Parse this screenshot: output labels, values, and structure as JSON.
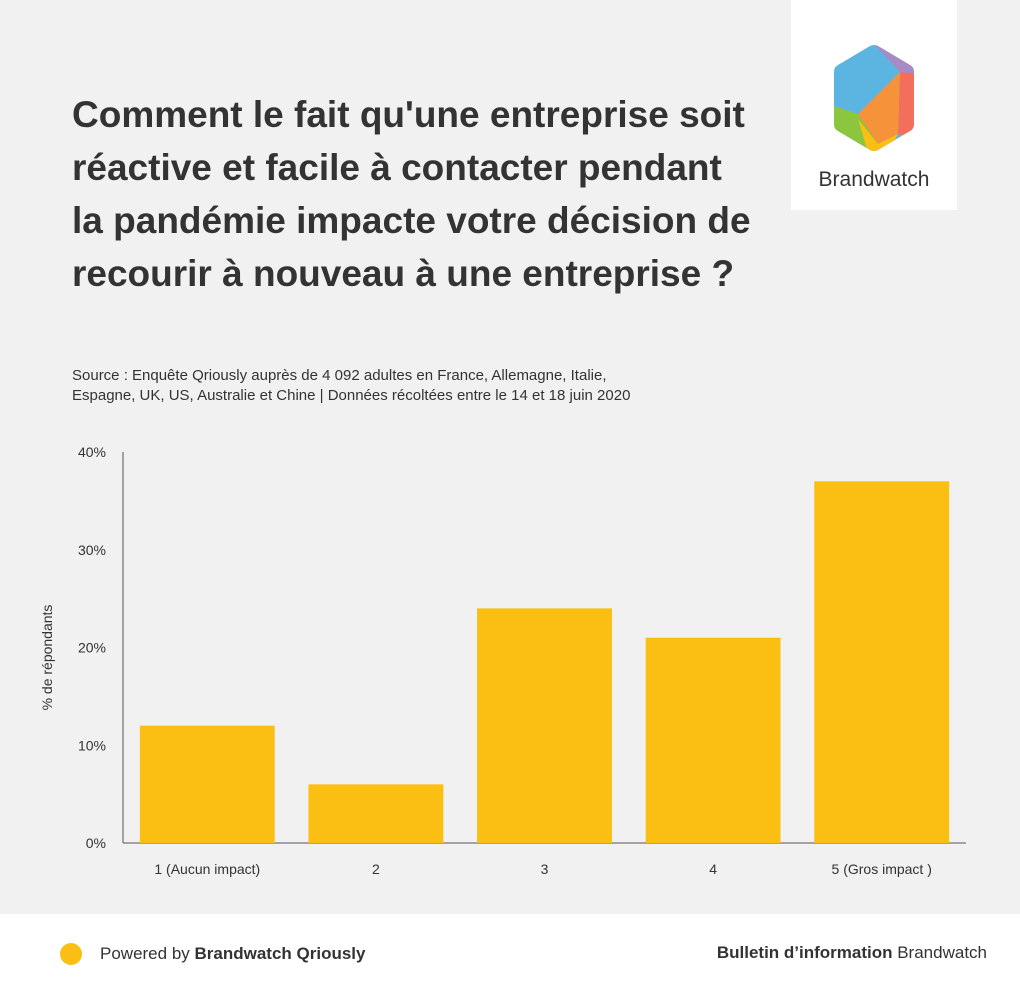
{
  "title": "Comment le fait qu'une entreprise soit réactive et facile à contacter pendant la pandémie impacte votre décision de recourir à nouveau à une entreprise ?",
  "subtitle_line1": "Source : Enquête Qriously auprès de 4 092 adultes en France, Allemagne, Italie,",
  "subtitle_line2": "Espagne, UK, US, Australie et Chine | Données récoltées entre le 14 et 18 juin 2020",
  "logo": {
    "text": "Brandwatch"
  },
  "footer": {
    "left_prefix": "Powered by ",
    "left_bold": "Brandwatch Qriously",
    "right_bold": "Bulletin d’information",
    "right_suffix": " Brandwatch"
  },
  "colors": {
    "bar": "#fbbf13",
    "background": "#f1f1f1",
    "text": "#333333"
  },
  "chart_data": {
    "type": "bar",
    "categories": [
      "1 (Aucun impact)",
      "2",
      "3",
      "4",
      "5 (Gros impact )"
    ],
    "values": [
      12,
      6,
      24,
      21,
      37
    ],
    "ylabel": "% de répondants",
    "xlabel": "",
    "ylim": [
      0,
      40
    ],
    "yticks": [
      0,
      10,
      20,
      30,
      40
    ],
    "ytick_labels": [
      "0%",
      "10%",
      "20%",
      "30%",
      "40%"
    ],
    "grid": false,
    "legend": "none"
  }
}
